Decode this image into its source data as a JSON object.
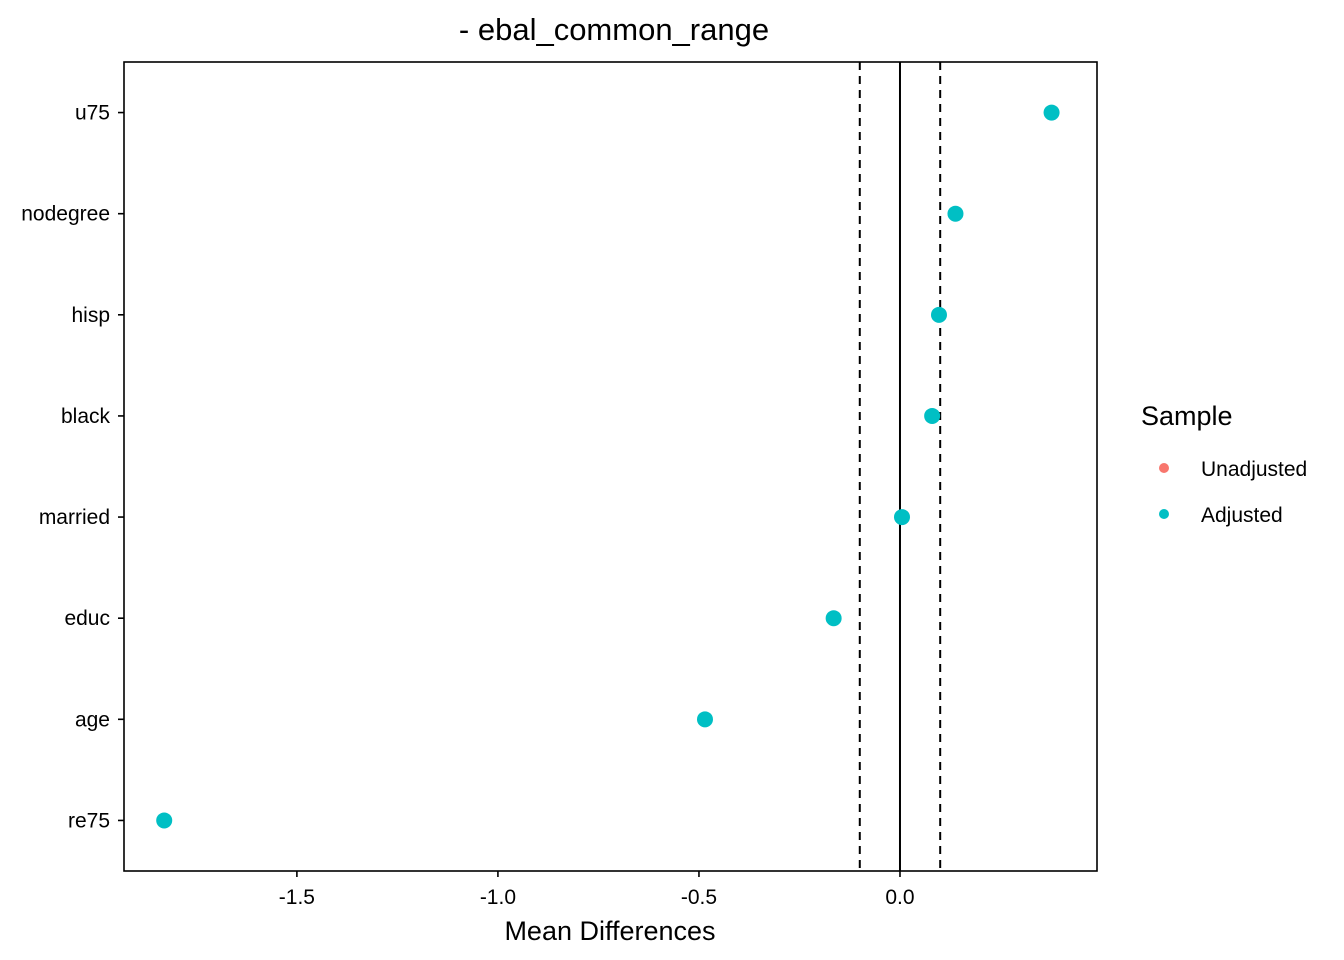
{
  "chart_data": {
    "type": "scatter",
    "title": "- ebal_common_range",
    "xlabel": "Mean Differences",
    "ylabel": "",
    "xlim": [
      -1.93,
      0.49
    ],
    "xticks": [
      -1.5,
      -1.0,
      -0.5,
      0.0
    ],
    "xtick_labels": [
      "-1.5",
      "-1.0",
      "-0.5",
      "0.0"
    ],
    "categories": [
      "re75",
      "age",
      "educ",
      "married",
      "black",
      "hisp",
      "nodegree",
      "u75"
    ],
    "series": [
      {
        "name": "Unadjusted",
        "color": "#F8766D",
        "values": [
          null,
          null,
          null,
          null,
          null,
          null,
          null,
          null
        ]
      },
      {
        "name": "Adjusted",
        "color": "#00BFC4",
        "values": [
          -1.83,
          -0.485,
          -0.165,
          0.005,
          0.08,
          0.097,
          0.138,
          0.377
        ]
      }
    ],
    "reference_lines": {
      "solid": [
        0.0
      ],
      "dashed": [
        -0.1,
        0.1
      ]
    },
    "legend": {
      "title": "Sample",
      "position": "right",
      "items": [
        "Unadjusted",
        "Adjusted"
      ]
    },
    "grid": false
  }
}
